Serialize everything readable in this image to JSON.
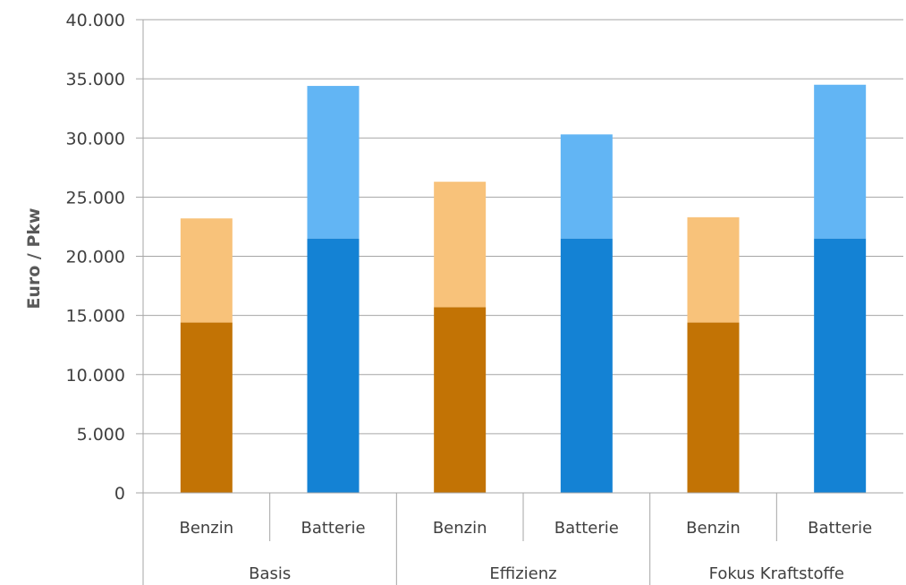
{
  "chart_data": {
    "type": "bar",
    "stacked": true,
    "ylabel": "Euro / Pkw",
    "xlabel": "",
    "ylim": [
      0,
      40000
    ],
    "yticks": [
      "0",
      "5.000",
      "10.000",
      "15.000",
      "20.000",
      "25.000",
      "30.000",
      "35.000",
      "40.000"
    ],
    "grid": true,
    "legend": "none",
    "groups": [
      "Basis",
      "Effizienz",
      "Fokus Kraftstoffe"
    ],
    "categories": [
      "Benzin",
      "Batterie",
      "Benzin",
      "Batterie",
      "Benzin",
      "Batterie"
    ],
    "series": [
      {
        "values": [
          14400,
          21500,
          15700,
          21500,
          14400,
          21500
        ]
      },
      {
        "values": [
          8800,
          12900,
          10600,
          8800,
          8900,
          13000
        ]
      }
    ],
    "colors": {
      "benzin_base": "#C27305",
      "benzin_top": "#F8C27A",
      "batterie_base": "#1482D4",
      "batterie_top": "#62B5F4",
      "grid": "#A6A6A6"
    }
  }
}
